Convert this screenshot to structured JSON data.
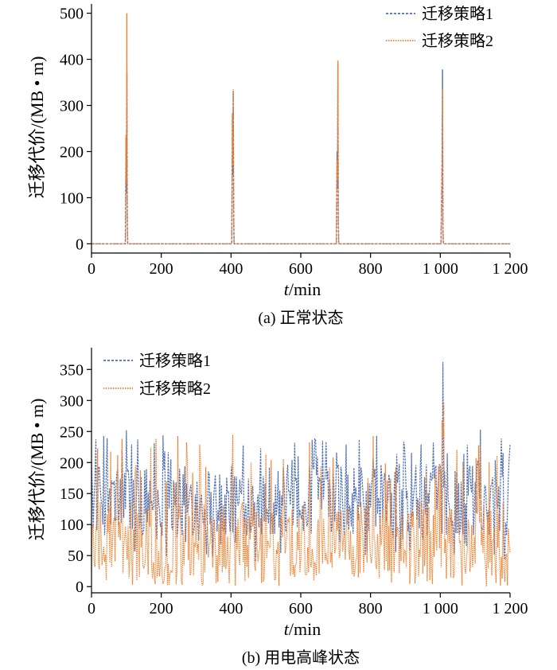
{
  "figure": {
    "colors": {
      "strategy1": "#4f6fb0",
      "strategy2": "#ef7f2d",
      "axis": "#000000"
    }
  },
  "chart_data": [
    {
      "type": "line",
      "caption": "(a)  正常状态",
      "xlabel_italic": "t",
      "xlabel_unit": "/min",
      "ylabel": "迁移代价/(MB • m)",
      "xlim": [
        0,
        1200
      ],
      "ylim": [
        -20,
        520
      ],
      "xticks": [
        0,
        200,
        400,
        600,
        800,
        1000,
        1200
      ],
      "xtick_labels": [
        "0",
        "200",
        "400",
        "600",
        "800",
        "1 000",
        "1 200"
      ],
      "yticks": [
        0,
        100,
        200,
        300,
        400,
        500
      ],
      "ytick_labels": [
        "0",
        "100",
        "200",
        "300",
        "400",
        "500"
      ],
      "legend_position": "top-right",
      "series": [
        {
          "name": "迁移策略1",
          "style": "dashed",
          "spikes": [
            {
              "x": 100,
              "values": [
                70,
                230,
                110,
                370,
                40
              ]
            },
            {
              "x": 405,
              "values": [
                90,
                280,
                150,
                330,
                60
              ]
            },
            {
              "x": 705,
              "values": [
                60,
                200,
                120,
                390,
                50
              ]
            },
            {
              "x": 1005,
              "values": [
                40,
                110,
                185,
                378,
                30
              ]
            }
          ]
        },
        {
          "name": "迁移策略2",
          "style": "dotted",
          "spikes": [
            {
              "x": 100,
              "values": [
                80,
                237,
                130,
                500,
                60
              ]
            },
            {
              "x": 405,
              "values": [
                100,
                284,
                170,
                335,
                70
              ]
            },
            {
              "x": 705,
              "values": [
                70,
                180,
                140,
                397,
                60
              ]
            },
            {
              "x": 1005,
              "values": [
                50,
                100,
                170,
                335,
                40
              ]
            }
          ]
        }
      ]
    },
    {
      "type": "line",
      "caption": "(b)  用电高峰状态",
      "xlabel_italic": "t",
      "xlabel_unit": "/min",
      "ylabel": "迁移代价/(MB • m)",
      "xlim": [
        0,
        1200
      ],
      "ylim": [
        -10,
        385
      ],
      "xticks": [
        0,
        200,
        400,
        600,
        800,
        1000,
        1200
      ],
      "xtick_labels": [
        "0",
        "200",
        "400",
        "600",
        "800",
        "1 000",
        "1 200"
      ],
      "yticks": [
        0,
        50,
        100,
        150,
        200,
        250,
        300,
        350
      ],
      "ytick_labels": [
        "0",
        "50",
        "100",
        "150",
        "200",
        "250",
        "300",
        "350"
      ],
      "legend_position": "top-left",
      "series": [
        {
          "name": "迁移策略1",
          "style": "dashed",
          "range": [
            40,
            250
          ],
          "mean": 140,
          "peaks": [
            {
              "x": 100,
              "value": 252
            },
            {
              "x": 1007,
              "value": 362
            },
            {
              "x": 1115,
              "value": 253
            },
            {
              "x": 640,
              "value": 238
            }
          ]
        },
        {
          "name": "迁移策略2",
          "style": "dotted",
          "range": [
            0,
            245
          ],
          "mean": 70,
          "peaks": [
            {
              "x": 405,
              "value": 245
            },
            {
              "x": 1005,
              "value": 268
            },
            {
              "x": 1010,
              "value": 297
            },
            {
              "x": 1115,
              "value": 225
            }
          ]
        }
      ]
    }
  ]
}
